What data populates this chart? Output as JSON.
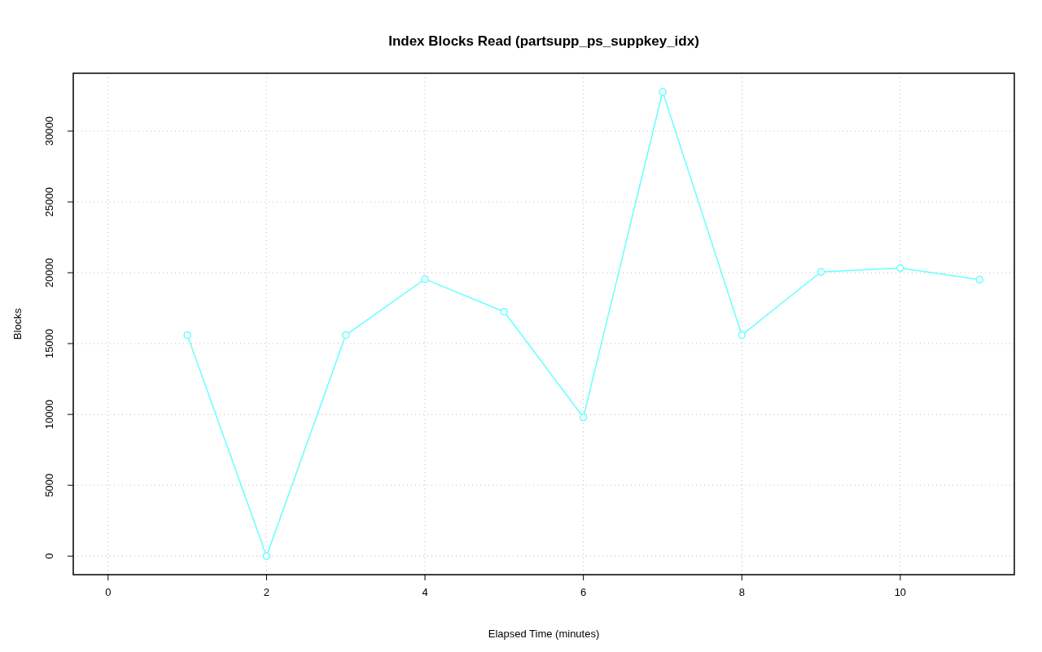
{
  "chart_data": {
    "type": "line",
    "title": "Index Blocks Read (partsupp_ps_suppkey_idx)",
    "xlabel": "Elapsed Time (minutes)",
    "ylabel": "Blocks",
    "x": [
      1,
      2,
      3,
      4,
      5,
      6,
      7,
      8,
      9,
      10,
      11
    ],
    "series": [
      {
        "color": "#66ffff",
        "values": [
          15600,
          0,
          15600,
          19550,
          17250,
          9790,
          32770,
          15600,
          20060,
          20330,
          19510
        ]
      }
    ],
    "xlim": [
      -0.44,
      11.44
    ],
    "ylim": [
      -1310,
      34080
    ],
    "xticks": [
      0,
      2,
      4,
      6,
      8,
      10
    ],
    "yticks": [
      0,
      5000,
      10000,
      15000,
      20000,
      25000,
      30000
    ],
    "grid": true,
    "marker": "circle",
    "line_style": "solid"
  }
}
